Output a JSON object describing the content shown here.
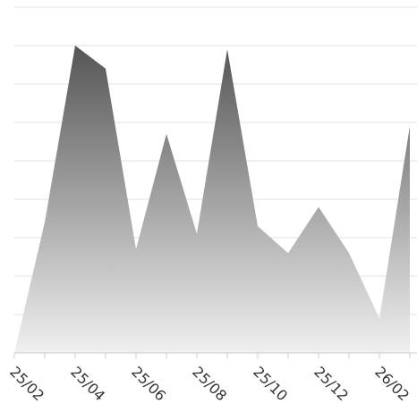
{
  "chart_data": {
    "type": "area",
    "categories": [
      "25/02",
      null,
      "25/04",
      null,
      "25/06",
      null,
      "25/08",
      null,
      "25/10",
      null,
      "25/12",
      null,
      "26/02",
      null
    ],
    "values": [
      0,
      3.4,
      8.0,
      7.4,
      2.7,
      5.7,
      3.1,
      7.9,
      3.3,
      2.6,
      3.8,
      2.6,
      0.9,
      5.9
    ],
    "color_top": "#555555",
    "color_bottom": "#f0f0f0",
    "ylim": [
      0,
      9
    ],
    "yticks": [
      0,
      1,
      2,
      3,
      4,
      5,
      6,
      7,
      8,
      9
    ],
    "grid": true
  }
}
